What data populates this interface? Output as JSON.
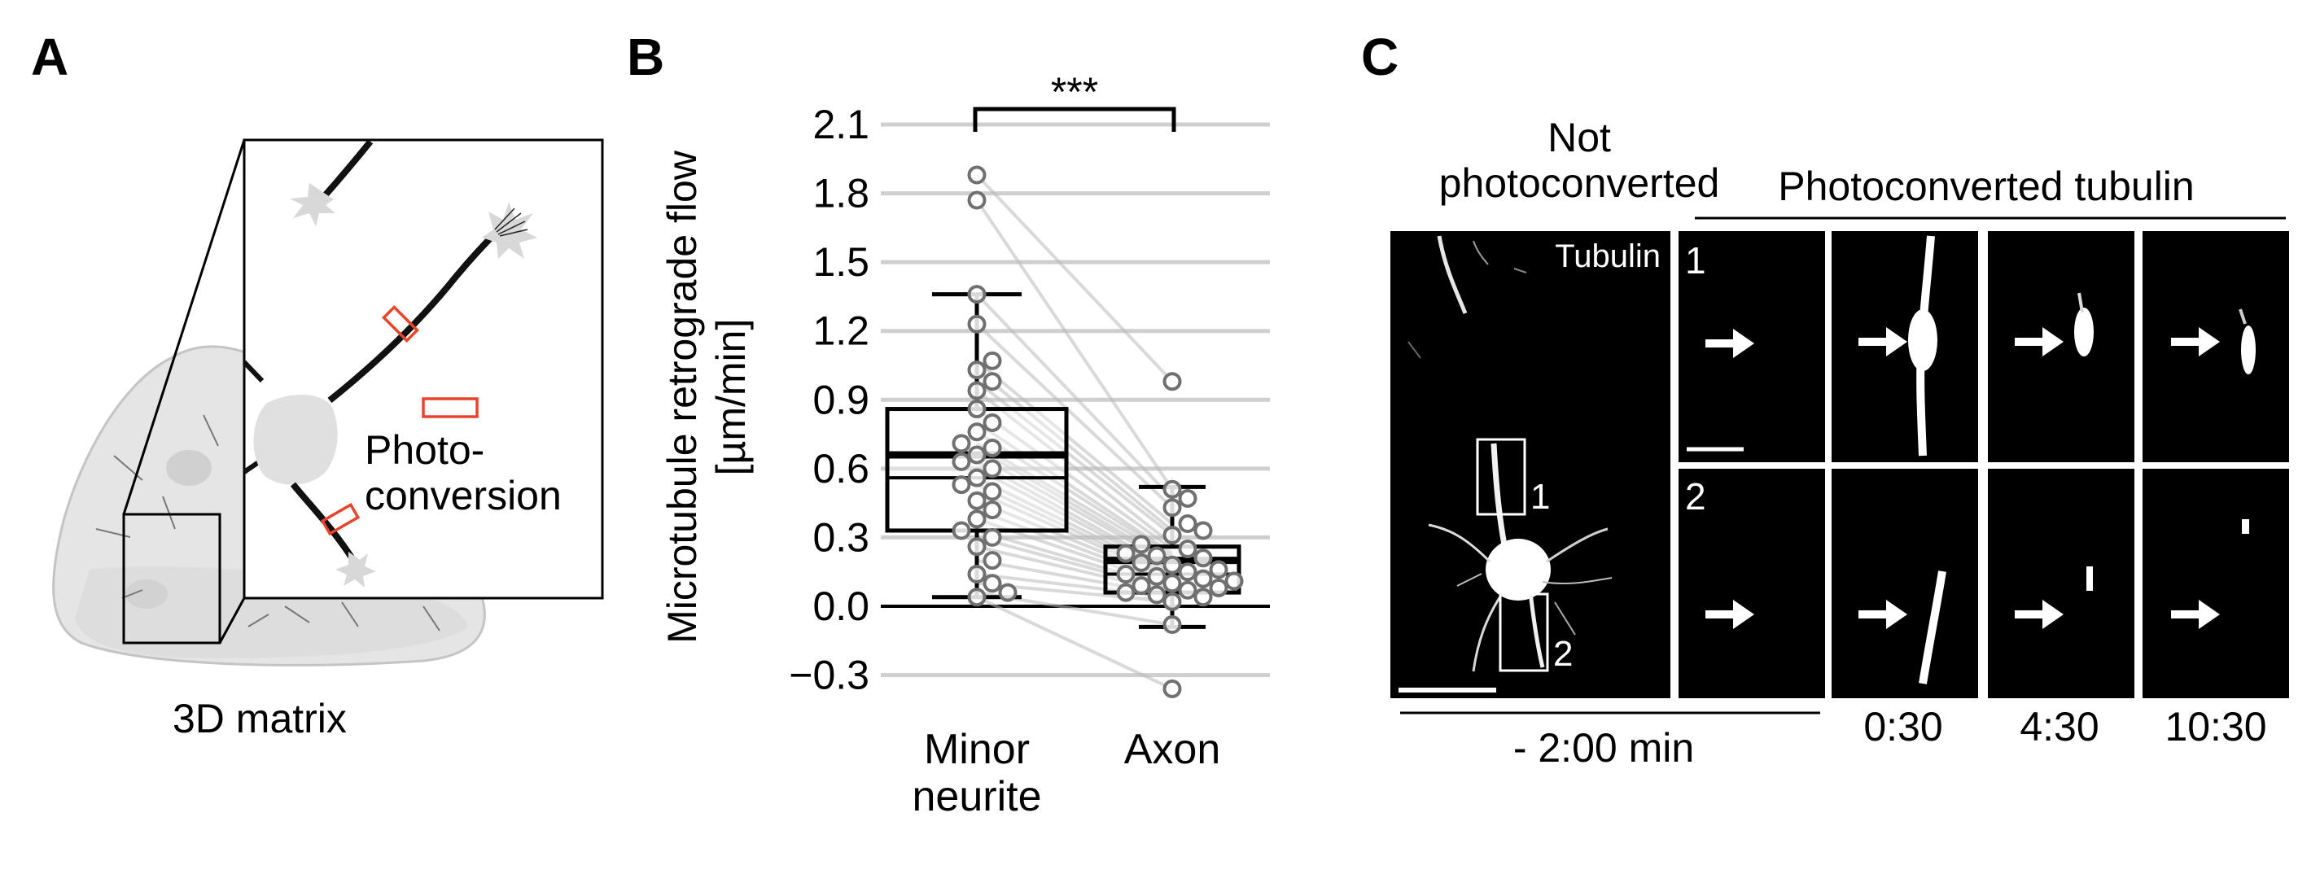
{
  "panel_a": {
    "letter": "A",
    "photo_label_line1": "Photo-",
    "photo_label_line2": "conversion",
    "matrix_label": "3D matrix",
    "colors": {
      "marker": "#e8442a",
      "matrix": "#e3e3e3",
      "cell": "#d6d6d6"
    }
  },
  "panel_b": {
    "letter": "B",
    "significance": "***",
    "ylabel_line1": "Microtubule retrograde flow",
    "ylabel_line2": "[µm/min]",
    "category_minor_line1": "Minor",
    "category_minor_line2": "neurite",
    "category_axon": "Axon"
  },
  "chart_data": {
    "type": "box",
    "categories": [
      "Minor neurite",
      "Axon"
    ],
    "ylabel": "Microtubule retrograde flow [µm/min]",
    "ylim": [
      -0.39,
      2.2
    ],
    "yticks": [
      -0.3,
      0.0,
      0.3,
      0.6,
      0.9,
      1.2,
      1.5,
      1.8,
      2.1
    ],
    "ytick_labels": [
      "−0.3",
      "0.0",
      "0.3",
      "0.6",
      "0.9",
      "1.2",
      "1.5",
      "1.8",
      "2.1"
    ],
    "grid": true,
    "paired": true,
    "boxes": [
      {
        "whisker_low": 0.04,
        "q1": 0.33,
        "median": 0.56,
        "mean": 0.66,
        "q3": 0.86,
        "whisker_high": 1.36
      },
      {
        "whisker_low": -0.09,
        "q1": 0.06,
        "median": 0.14,
        "mean": 0.2,
        "q3": 0.26,
        "whisker_high": 0.52
      }
    ],
    "minor_neurite": [
      1.88,
      1.77,
      1.36,
      1.23,
      1.07,
      1.03,
      0.98,
      0.94,
      0.86,
      0.8,
      0.76,
      0.71,
      0.69,
      0.66,
      0.63,
      0.6,
      0.56,
      0.53,
      0.5,
      0.46,
      0.42,
      0.38,
      0.33,
      0.3,
      0.26,
      0.2,
      0.14,
      0.1,
      0.06,
      0.04
    ],
    "axon": [
      0.98,
      0.51,
      0.47,
      0.43,
      0.36,
      0.33,
      0.31,
      0.27,
      0.25,
      0.23,
      0.22,
      0.21,
      0.19,
      0.18,
      0.16,
      0.15,
      0.14,
      0.13,
      0.12,
      0.11,
      0.1,
      0.09,
      0.08,
      0.07,
      0.06,
      0.05,
      0.04,
      0.02,
      -0.08,
      -0.36
    ]
  },
  "panel_c": {
    "letter": "C",
    "not_photo_line1": "Not",
    "not_photo_line2": "photoconverted",
    "photoconverted_header": "Photoconverted tubulin",
    "tubulin_label": "Tubulin",
    "roi_1": "1",
    "roi_2": "2",
    "row_1": "1",
    "row_2": "2",
    "time_pre": "- 2:00 min",
    "times": [
      "0:30",
      "4:30",
      "10:30"
    ]
  }
}
